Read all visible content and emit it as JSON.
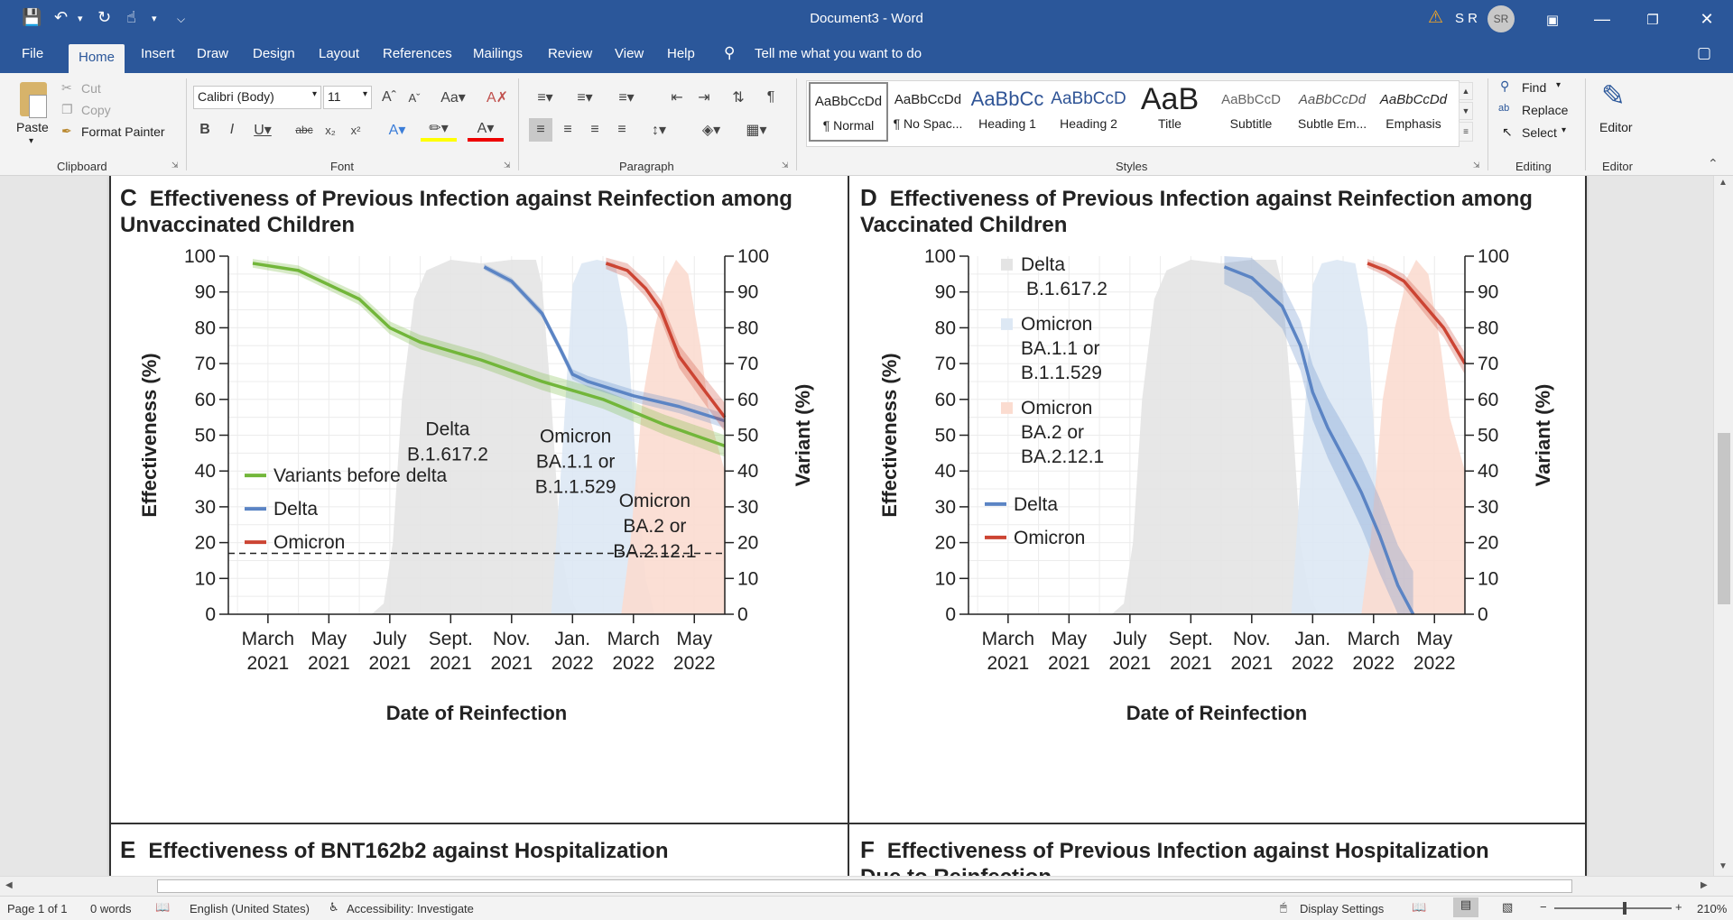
{
  "window": {
    "doc_title": "Document3 - Word",
    "user_initials": "S R",
    "avatar": "SR",
    "warning_icon": "warning-icon"
  },
  "menu_tabs": [
    "File",
    "Home",
    "Insert",
    "Draw",
    "Design",
    "Layout",
    "References",
    "Mailings",
    "Review",
    "View",
    "Help"
  ],
  "tell_me": "Tell me what you want to do",
  "clipboard": {
    "paste": "Paste",
    "cut": "Cut",
    "copy": "Copy",
    "format_painter": "Format Painter",
    "label": "Clipboard"
  },
  "font": {
    "name": "Calibri (Body)",
    "size": "11",
    "label": "Font"
  },
  "paragraph": {
    "label": "Paragraph"
  },
  "styles": {
    "label": "Styles",
    "items": [
      {
        "preview": "AaBbCcDd",
        "name": "¶ Normal"
      },
      {
        "preview": "AaBbCcDd",
        "name": "¶ No Spac..."
      },
      {
        "preview": "AaBbCc",
        "name": "Heading 1"
      },
      {
        "preview": "AaBbCcD",
        "name": "Heading 2"
      },
      {
        "preview": "AaB",
        "name": "Title"
      },
      {
        "preview": "AaBbCcD",
        "name": "Subtitle"
      },
      {
        "preview": "AaBbCcDd",
        "name": "Subtle Em..."
      },
      {
        "preview": "AaBbCcDd",
        "name": "Emphasis"
      }
    ]
  },
  "editing": {
    "find": "Find",
    "replace": "Replace",
    "select": "Select",
    "label": "Editing"
  },
  "editor": {
    "button": "Editor",
    "label": "Editor"
  },
  "status": {
    "page": "Page 1 of 1",
    "words": "0 words",
    "language": "English (United States)",
    "accessibility": "Accessibility: Investigate",
    "display": "Display Settings",
    "zoom": "210%"
  },
  "document": {
    "panel_e_letter": "E",
    "panel_e_title": "Effectiveness of BNT162b2 against Hospitalization",
    "panel_f_letter": "F",
    "panel_f_title": "Effectiveness of Previous Infection against Hospitalization Due to Reinfection"
  },
  "chart_data": [
    {
      "letter": "C",
      "type": "line",
      "title": "Effectiveness of Previous Infection against Reinfection among Unvaccinated Children",
      "xlabel": "Date of Reinfection",
      "ylabel": "Effectiveness (%)",
      "y2label": "Variant (%)",
      "ylim": [
        0,
        100
      ],
      "y2lim": [
        0,
        100
      ],
      "x_ticks": [
        "March\n2021",
        "May\n2021",
        "July\n2021",
        "Sept.\n2021",
        "Nov.\n2021",
        "Jan.\n2022",
        "March\n2022",
        "May\n2022"
      ],
      "x_tick_months": [
        2,
        4,
        6,
        8,
        10,
        12,
        14,
        16
      ],
      "y_ticks": [
        0,
        10,
        20,
        30,
        40,
        50,
        60,
        70,
        80,
        90,
        100
      ],
      "reference_line": 17,
      "legend": [
        "Variants before delta",
        "Delta",
        "Omicron"
      ],
      "area_labels": [
        {
          "text": [
            "Delta",
            "B.1.617.2"
          ],
          "m": 7.9,
          "v": 50
        },
        {
          "text": [
            "Omicron",
            "BA.1.1 or",
            "B.1.1.529"
          ],
          "m": 12.1,
          "v": 48
        },
        {
          "text": [
            "Omicron",
            "BA.2 or",
            "BA.2.12.1"
          ],
          "m": 14.7,
          "v": 30
        }
      ],
      "variant_areas": [
        {
          "name": "Delta B.1.617.2",
          "color": "#e4e4e4",
          "points": [
            [
              5.4,
              0
            ],
            [
              5.8,
              3
            ],
            [
              6.1,
              20
            ],
            [
              6.4,
              60
            ],
            [
              6.8,
              88
            ],
            [
              7.2,
              96
            ],
            [
              8,
              99
            ],
            [
              9,
              98
            ],
            [
              10,
              99
            ],
            [
              10.8,
              99
            ],
            [
              11,
              92
            ],
            [
              11.3,
              60
            ],
            [
              11.6,
              20
            ],
            [
              11.9,
              5
            ],
            [
              12.2,
              0
            ]
          ]
        },
        {
          "name": "Omicron BA.1.1 or B.1.1.529",
          "color": "#dde8f4",
          "points": [
            [
              11.3,
              0
            ],
            [
              11.7,
              50
            ],
            [
              12,
              92
            ],
            [
              12.3,
              98
            ],
            [
              12.8,
              99
            ],
            [
              13.4,
              98
            ],
            [
              13.8,
              80
            ],
            [
              14.1,
              40
            ],
            [
              14.4,
              10
            ],
            [
              14.7,
              0
            ]
          ]
        },
        {
          "name": "Omicron BA.2 or BA.2.12.1",
          "color": "#fbdcd0",
          "points": [
            [
              13.6,
              0
            ],
            [
              13.9,
              20
            ],
            [
              14.3,
              60
            ],
            [
              14.7,
              80
            ],
            [
              15.1,
              94
            ],
            [
              15.4,
              99
            ],
            [
              15.8,
              95
            ],
            [
              16.2,
              75
            ],
            [
              16.5,
              55
            ],
            [
              17,
              40
            ],
            [
              17,
              0
            ]
          ]
        }
      ],
      "series": [
        {
          "name": "Variants before delta",
          "color": "#72b63a",
          "x": [
            1.5,
            3,
            5,
            6,
            7,
            9,
            11,
            13,
            15,
            17
          ],
          "y": [
            98,
            96,
            88,
            80,
            76,
            71,
            65,
            60,
            53,
            47
          ],
          "band": 3
        },
        {
          "name": "Delta",
          "color": "#5b84c4",
          "x": [
            9.1,
            10,
            11,
            11.6,
            12,
            12.5,
            14,
            15.5,
            17
          ],
          "y": [
            97,
            93,
            84,
            74,
            67,
            65,
            61,
            58,
            54
          ],
          "band": 2
        },
        {
          "name": "Omicron",
          "color": "#cc4433",
          "x": [
            13.1,
            13.8,
            14.4,
            14.9,
            15.5,
            16.2,
            17
          ],
          "y": [
            98,
            96,
            91,
            85,
            72,
            64,
            55
          ],
          "band": 4
        }
      ]
    },
    {
      "letter": "D",
      "type": "line",
      "title": "Effectiveness of Previous Infection against Reinfection among Vaccinated Children",
      "xlabel": "Date of Reinfection",
      "ylabel": "Effectiveness (%)",
      "y2label": "Variant (%)",
      "ylim": [
        0,
        100
      ],
      "y2lim": [
        0,
        100
      ],
      "x_ticks": [
        "March\n2021",
        "May\n2021",
        "July\n2021",
        "Sept.\n2021",
        "Nov.\n2021",
        "Jan.\n2022",
        "March\n2022",
        "May\n2022"
      ],
      "x_tick_months": [
        2,
        4,
        6,
        8,
        10,
        12,
        14,
        16
      ],
      "y_ticks": [
        0,
        10,
        20,
        30,
        40,
        50,
        60,
        70,
        80,
        90,
        100
      ],
      "area_legend": [
        {
          "text": [
            "Delta",
            "B.1.617.2"
          ],
          "color": "#e4e4e4"
        },
        {
          "text": [
            "Omicron",
            "BA.1.1 or",
            "B.1.1.529"
          ],
          "color": "#dde8f4"
        },
        {
          "text": [
            "Omicron",
            "BA.2 or",
            "BA.2.12.1"
          ],
          "color": "#fbdcd0"
        }
      ],
      "legend": [
        "Delta",
        "Omicron"
      ],
      "variant_areas": [
        {
          "name": "Delta B.1.617.2",
          "color": "#e4e4e4",
          "points": [
            [
              5.4,
              0
            ],
            [
              5.8,
              3
            ],
            [
              6.1,
              20
            ],
            [
              6.4,
              60
            ],
            [
              6.8,
              88
            ],
            [
              7.2,
              96
            ],
            [
              8,
              99
            ],
            [
              9,
              98
            ],
            [
              10,
              99
            ],
            [
              10.8,
              99
            ],
            [
              11,
              92
            ],
            [
              11.3,
              60
            ],
            [
              11.6,
              20
            ],
            [
              11.9,
              5
            ],
            [
              12.2,
              0
            ]
          ]
        },
        {
          "name": "Omicron BA.1.1 or B.1.1.529",
          "color": "#dde8f4",
          "points": [
            [
              11.3,
              0
            ],
            [
              11.7,
              50
            ],
            [
              12,
              92
            ],
            [
              12.3,
              98
            ],
            [
              12.8,
              99
            ],
            [
              13.4,
              98
            ],
            [
              13.8,
              80
            ],
            [
              14.1,
              40
            ],
            [
              14.4,
              10
            ],
            [
              14.7,
              0
            ]
          ]
        },
        {
          "name": "Omicron BA.2 or BA.2.12.1",
          "color": "#fbdcd0",
          "points": [
            [
              13.6,
              0
            ],
            [
              13.9,
              20
            ],
            [
              14.3,
              60
            ],
            [
              14.7,
              80
            ],
            [
              15.1,
              94
            ],
            [
              15.4,
              99
            ],
            [
              15.8,
              95
            ],
            [
              16.2,
              75
            ],
            [
              16.5,
              55
            ],
            [
              17,
              40
            ],
            [
              17,
              0
            ]
          ]
        }
      ],
      "series": [
        {
          "name": "Delta",
          "color": "#5b84c4",
          "x": [
            9.1,
            10,
            11,
            11.6,
            12,
            12.5,
            13,
            13.6,
            14.2,
            14.8,
            15.3
          ],
          "y": [
            97,
            94,
            86,
            75,
            62,
            52,
            44,
            34,
            22,
            8,
            0
          ],
          "band": 12
        },
        {
          "name": "Omicron",
          "color": "#cc4433",
          "x": [
            13.8,
            14.4,
            15,
            15.6,
            16.3,
            17
          ],
          "y": [
            98,
            96,
            93,
            87,
            80,
            70
          ],
          "band": 3
        }
      ]
    }
  ]
}
